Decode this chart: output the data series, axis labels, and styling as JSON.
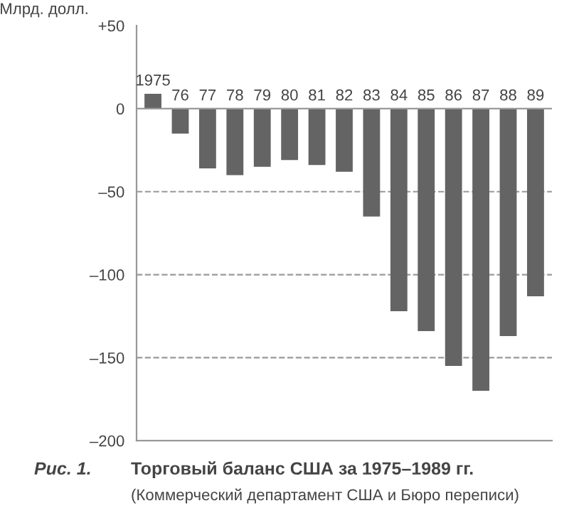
{
  "chart_data": {
    "type": "bar",
    "title": "Торговый баланс США за 1975–1989 гг.",
    "ylabel": "Млрд. долл.",
    "annotations": [
      "Рис. 1.",
      "(Коммерческий департамент США и Бюро переписи)"
    ],
    "categories": [
      "1975",
      "76",
      "77",
      "78",
      "79",
      "80",
      "81",
      "82",
      "83",
      "84",
      "85",
      "86",
      "87",
      "88",
      "89"
    ],
    "values": [
      9,
      -15,
      -36,
      -40,
      -35,
      -31,
      -34,
      -38,
      -65,
      -122,
      -134,
      -155,
      -170,
      -137,
      -113
    ],
    "color": "#646464",
    "ylim": [
      -200,
      50
    ],
    "yticks": [
      {
        "value": 50,
        "label": "+50"
      },
      0,
      {
        "value": -50,
        "label": "–50"
      },
      {
        "value": -100,
        "label": "–100"
      },
      {
        "value": -150,
        "label": "–150"
      },
      {
        "value": -200,
        "label": "–200"
      }
    ],
    "grid": "y",
    "line_style": "dashed"
  }
}
